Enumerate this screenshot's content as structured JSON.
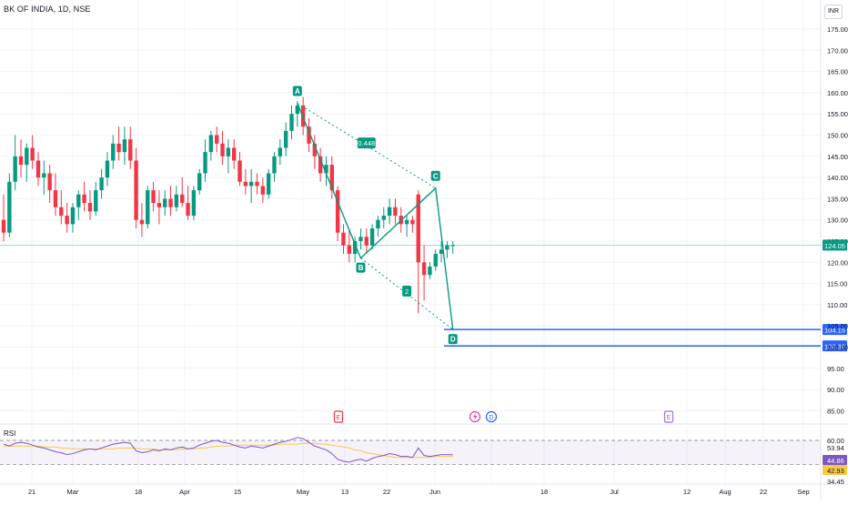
{
  "header": {
    "title": "BK OF INDIA, 1D, NSE",
    "currency": "INR"
  },
  "price_axis": {
    "labels": [
      "175.00",
      "170.00",
      "165.00",
      "160.00",
      "155.00",
      "150.00",
      "145.00",
      "140.00",
      "135.00",
      "130.00",
      "125.00",
      "120.00",
      "115.00",
      "110.00",
      "105.00",
      "100.00",
      "95.00",
      "90.00",
      "85.00"
    ],
    "values": [
      175,
      170,
      165,
      160,
      155,
      150,
      145,
      140,
      135,
      130,
      125,
      120,
      115,
      110,
      105,
      100,
      95,
      90,
      85
    ]
  },
  "last_price": {
    "value": 124.05,
    "label": "124.05"
  },
  "horizontal_levels": [
    {
      "value": 104.15,
      "label": "104.15"
    },
    {
      "value": 100.3,
      "label": "100.30"
    }
  ],
  "time_axis": [
    "21",
    "Mar",
    "18",
    "Apr",
    "15",
    "May",
    "13",
    "22",
    "Jun",
    "18",
    "Jul",
    "12",
    "Aug",
    "22",
    "Sep"
  ],
  "pattern": {
    "points": [
      {
        "label": "A",
        "value": 157.5
      },
      {
        "label": "B",
        "value": 121.0
      },
      {
        "label": "C",
        "value": 137.5
      },
      {
        "label": "D",
        "value": 104.15
      }
    ],
    "ratio_ac": "0.448",
    "ratio_bd": "2"
  },
  "events": [
    {
      "label": "E",
      "type": "earnings"
    },
    {
      "label": "D",
      "type": "dividend"
    },
    {
      "label": "E",
      "type": "earnings"
    }
  ],
  "rsi": {
    "title": "RSI",
    "levels": [
      60.0,
      34.45
    ],
    "axis_labels": [
      "60.00",
      "53.94",
      "44.86",
      "42.93",
      "34.45"
    ],
    "rsi_value": "44.86",
    "ma_value": "42.93",
    "colors": {
      "rsi": "#7e57c2",
      "ma": "#f7c948"
    }
  },
  "colors": {
    "up": "#089981",
    "down": "#f23645",
    "level": "#2962ff",
    "pattern": "#089981"
  },
  "chart_data": {
    "type": "candlestick",
    "title": "BK OF INDIA, 1D, NSE",
    "ylim": [
      83,
      180
    ],
    "candles": [
      [
        130,
        136,
        125,
        127
      ],
      [
        127,
        141,
        126,
        139
      ],
      [
        139,
        150,
        137,
        145
      ],
      [
        145,
        149,
        140,
        143
      ],
      [
        143,
        148,
        139,
        147
      ],
      [
        147,
        150,
        142,
        144
      ],
      [
        144,
        146,
        138,
        140
      ],
      [
        140,
        144,
        136,
        141
      ],
      [
        141,
        143,
        134,
        137
      ],
      [
        137,
        141,
        131,
        133
      ],
      [
        133,
        137,
        129,
        131
      ],
      [
        131,
        134,
        127,
        129
      ],
      [
        129,
        134,
        127,
        133
      ],
      [
        133,
        137,
        130,
        136
      ],
      [
        136,
        139,
        132,
        134
      ],
      [
        134,
        137,
        130,
        132
      ],
      [
        132,
        139,
        131,
        137
      ],
      [
        137,
        142,
        135,
        140
      ],
      [
        140,
        146,
        138,
        144
      ],
      [
        144,
        150,
        142,
        148
      ],
      [
        148,
        152,
        144,
        146
      ],
      [
        146,
        152,
        143,
        149
      ],
      [
        149,
        152,
        142,
        144
      ],
      [
        144,
        147,
        128,
        130
      ],
      [
        130,
        134,
        126,
        129
      ],
      [
        129,
        138,
        128,
        137
      ],
      [
        137,
        139,
        132,
        134
      ],
      [
        134,
        137,
        129,
        133
      ],
      [
        133,
        137,
        131,
        135
      ],
      [
        135,
        138,
        131,
        133
      ],
      [
        133,
        138,
        132,
        136
      ],
      [
        136,
        140,
        133,
        134
      ],
      [
        134,
        138,
        130,
        131
      ],
      [
        131,
        138,
        130,
        137
      ],
      [
        137,
        142,
        136,
        141
      ],
      [
        141,
        149,
        139,
        146
      ],
      [
        146,
        151,
        144,
        150
      ],
      [
        150,
        152,
        146,
        148
      ],
      [
        148,
        151,
        143,
        145
      ],
      [
        145,
        149,
        141,
        147
      ],
      [
        147,
        149,
        142,
        144
      ],
      [
        144,
        146,
        138,
        139
      ],
      [
        139,
        142,
        136,
        138
      ],
      [
        138,
        142,
        134,
        139
      ],
      [
        139,
        141,
        136,
        138
      ],
      [
        138,
        140,
        134,
        136
      ],
      [
        136,
        142,
        135,
        141
      ],
      [
        141,
        146,
        139,
        145
      ],
      [
        145,
        149,
        143,
        147
      ],
      [
        147,
        153,
        145,
        151
      ],
      [
        151,
        157,
        149,
        155
      ],
      [
        155,
        158,
        152,
        157
      ],
      [
        157,
        159,
        150,
        152
      ],
      [
        152,
        154,
        146,
        148
      ],
      [
        148,
        150,
        142,
        145
      ],
      [
        145,
        147,
        139,
        141
      ],
      [
        141,
        145,
        138,
        143
      ],
      [
        143,
        145,
        135,
        137
      ],
      [
        137,
        138,
        125,
        127
      ],
      [
        127,
        129,
        122,
        124
      ],
      [
        124,
        128,
        120,
        122
      ],
      [
        122,
        126,
        120,
        125
      ],
      [
        125,
        128,
        123,
        126
      ],
      [
        126,
        128,
        122,
        124
      ],
      [
        124,
        129,
        123,
        128
      ],
      [
        128,
        131,
        126,
        130
      ],
      [
        130,
        133,
        128,
        131
      ],
      [
        131,
        135,
        129,
        133
      ],
      [
        133,
        135,
        129,
        131
      ],
      [
        131,
        133,
        127,
        129
      ],
      [
        129,
        131,
        126,
        130
      ],
      [
        130,
        131,
        127,
        129
      ],
      [
        136,
        137,
        108,
        120
      ],
      [
        120,
        124,
        111,
        117
      ],
      [
        117,
        120,
        116,
        119
      ],
      [
        119,
        123,
        118,
        122
      ],
      [
        122,
        125,
        120,
        123
      ],
      [
        123,
        125,
        121,
        124
      ],
      [
        124,
        125,
        122,
        124.05
      ]
    ],
    "rsi": [
      56,
      54,
      57,
      58,
      57,
      55,
      53,
      52,
      50,
      48,
      47,
      45,
      46,
      48,
      50,
      51,
      50,
      52,
      54,
      56,
      57,
      58,
      57,
      49,
      47,
      48,
      50,
      49,
      51,
      50,
      52,
      53,
      51,
      52,
      55,
      57,
      59,
      60,
      58,
      57,
      55,
      53,
      52,
      54,
      53,
      52,
      54,
      56,
      58,
      59,
      61,
      63,
      62,
      58,
      54,
      52,
      50,
      46,
      40,
      38,
      37,
      39,
      40,
      38,
      41,
      43,
      44,
      46,
      45,
      43,
      43,
      42,
      52,
      44,
      43,
      44,
      45,
      45,
      44.86
    ],
    "rsi_ma": [
      54,
      54,
      54,
      54,
      54,
      54,
      54,
      53,
      53,
      53,
      52,
      52,
      51,
      51,
      51,
      51,
      51,
      51,
      51,
      51,
      52,
      52,
      52,
      52,
      51,
      51,
      51,
      50,
      50,
      50,
      50,
      51,
      51,
      51,
      52,
      52,
      53,
      54,
      54,
      54,
      55,
      55,
      55,
      55,
      55,
      55,
      55,
      55,
      56,
      56,
      56,
      56,
      57,
      57,
      57,
      56,
      56,
      55,
      54,
      53,
      52,
      50,
      49,
      47,
      46,
      45,
      44,
      43,
      42,
      42,
      42,
      42,
      42,
      42,
      42,
      43,
      43,
      43,
      42.93
    ]
  }
}
